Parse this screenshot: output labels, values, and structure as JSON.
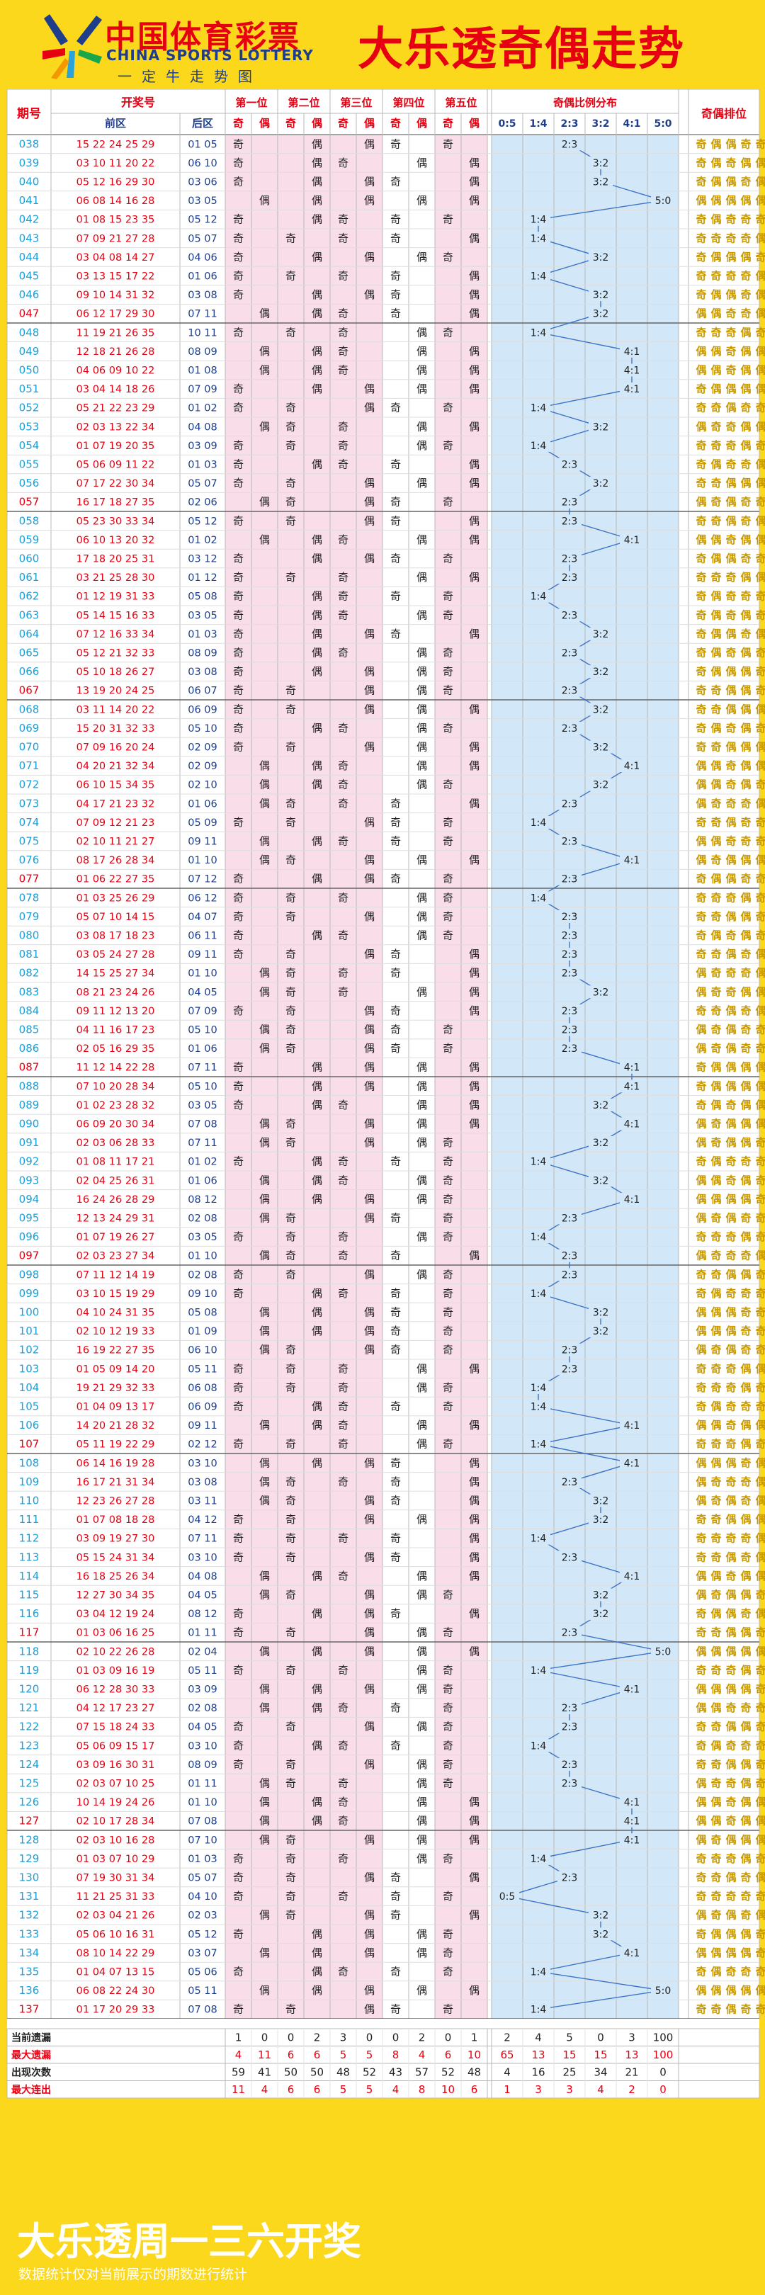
{
  "brand": {
    "cn": "中国体育彩票",
    "en": "CHINA SPORTS LOTTERY",
    "slogan": "一定牛走势图"
  },
  "title": "大乐透奇偶走势",
  "footer": {
    "title": "大乐透周一三六开奖",
    "note": "数据统计仅对当前展示的期数进行统计"
  },
  "colors": {
    "background": "#fcd81c",
    "accent_red": "#e60012",
    "brand_blue": "#1e3e8c",
    "pink_zone": "#f9dde8",
    "blue_zone": "#d2e8f8",
    "issue_text": "#1a9fd9",
    "odd_even_gold": "#c99a00"
  },
  "chart_data": {
    "type": "table",
    "headers": {
      "issue": "期号",
      "draw": "开奖号",
      "front": "前区",
      "back": "后区",
      "positions": [
        "第一位",
        "第二位",
        "第三位",
        "第四位",
        "第五位"
      ],
      "odd": "奇",
      "even": "偶",
      "ratio_group": "奇偶比例分布",
      "ratios": [
        "0:5",
        "1:4",
        "2:3",
        "3:2",
        "4:1",
        "5:0"
      ],
      "sequence": "奇偶排位"
    },
    "rows": [
      {
        "issue": "038",
        "front": "15 22 24 25 29",
        "back": "01 05"
      },
      {
        "issue": "039",
        "front": "03 10 11 20 22",
        "back": "06 10"
      },
      {
        "issue": "040",
        "front": "05 12 16 29 30",
        "back": "03 06"
      },
      {
        "issue": "041",
        "front": "06 08 14 16 28",
        "back": "03 05"
      },
      {
        "issue": "042",
        "front": "01 08 15 23 35",
        "back": "05 12"
      },
      {
        "issue": "043",
        "front": "07 09 21 27 28",
        "back": "05 07"
      },
      {
        "issue": "044",
        "front": "03 04 08 14 27",
        "back": "04 06"
      },
      {
        "issue": "045",
        "front": "03 13 15 17 22",
        "back": "01 06"
      },
      {
        "issue": "046",
        "front": "09 10 14 31 32",
        "back": "03 08"
      },
      {
        "issue": "047",
        "front": "06 12 17 29 30",
        "back": "07 11"
      },
      {
        "issue": "048",
        "front": "11 19 21 26 35",
        "back": "10 11"
      },
      {
        "issue": "049",
        "front": "12 18 21 26 28",
        "back": "08 09"
      },
      {
        "issue": "050",
        "front": "04 06 09 10 22",
        "back": "01 08"
      },
      {
        "issue": "051",
        "front": "03 04 14 18 26",
        "back": "07 09"
      },
      {
        "issue": "052",
        "front": "05 21 22 23 29",
        "back": "01 02"
      },
      {
        "issue": "053",
        "front": "02 03 13 22 34",
        "back": "04 08"
      },
      {
        "issue": "054",
        "front": "01 07 19 20 35",
        "back": "03 09"
      },
      {
        "issue": "055",
        "front": "05 06 09 11 22",
        "back": "01 03"
      },
      {
        "issue": "056",
        "front": "07 17 22 30 34",
        "back": "05 07"
      },
      {
        "issue": "057",
        "front": "16 17 18 27 35",
        "back": "02 06"
      },
      {
        "issue": "058",
        "front": "05 23 30 33 34",
        "back": "05 12"
      },
      {
        "issue": "059",
        "front": "06 10 13 20 32",
        "back": "01 02"
      },
      {
        "issue": "060",
        "front": "17 18 20 25 31",
        "back": "03 12"
      },
      {
        "issue": "061",
        "front": "03 21 25 28 30",
        "back": "01 12"
      },
      {
        "issue": "062",
        "front": "01 12 19 31 33",
        "back": "05 08"
      },
      {
        "issue": "063",
        "front": "05 14 15 16 33",
        "back": "03 05"
      },
      {
        "issue": "064",
        "front": "07 12 16 33 34",
        "back": "01 03"
      },
      {
        "issue": "065",
        "front": "05 12 21 32 33",
        "back": "08 09"
      },
      {
        "issue": "066",
        "front": "05 10 18 26 27",
        "back": "03 08"
      },
      {
        "issue": "067",
        "front": "13 19 20 24 25",
        "back": "06 07"
      },
      {
        "issue": "068",
        "front": "03 11 14 20 22",
        "back": "06 09"
      },
      {
        "issue": "069",
        "front": "15 20 31 32 33",
        "back": "05 10"
      },
      {
        "issue": "070",
        "front": "07 09 16 20 24",
        "back": "02 09"
      },
      {
        "issue": "071",
        "front": "04 20 21 32 34",
        "back": "02 09"
      },
      {
        "issue": "072",
        "front": "06 10 15 34 35",
        "back": "02 10"
      },
      {
        "issue": "073",
        "front": "04 17 21 23 32",
        "back": "01 06"
      },
      {
        "issue": "074",
        "front": "07 09 12 21 23",
        "back": "05 09"
      },
      {
        "issue": "075",
        "front": "02 10 11 21 27",
        "back": "09 11"
      },
      {
        "issue": "076",
        "front": "08 17 26 28 34",
        "back": "01 10"
      },
      {
        "issue": "077",
        "front": "01 06 22 27 35",
        "back": "07 12"
      },
      {
        "issue": "078",
        "front": "01 03 25 26 29",
        "back": "06 12"
      },
      {
        "issue": "079",
        "front": "05 07 10 14 15",
        "back": "04 07"
      },
      {
        "issue": "080",
        "front": "03 08 17 18 23",
        "back": "06 11"
      },
      {
        "issue": "081",
        "front": "03 05 24 27 28",
        "back": "09 11"
      },
      {
        "issue": "082",
        "front": "14 15 25 27 34",
        "back": "01 10"
      },
      {
        "issue": "083",
        "front": "08 21 23 24 26",
        "back": "04 05"
      },
      {
        "issue": "084",
        "front": "09 11 12 13 20",
        "back": "07 09"
      },
      {
        "issue": "085",
        "front": "04 11 16 17 23",
        "back": "05 10"
      },
      {
        "issue": "086",
        "front": "02 05 16 29 35",
        "back": "01 06"
      },
      {
        "issue": "087",
        "front": "11 12 14 22 28",
        "back": "07 11"
      },
      {
        "issue": "088",
        "front": "07 10 20 28 34",
        "back": "05 10"
      },
      {
        "issue": "089",
        "front": "01 02 23 28 32",
        "back": "03 05"
      },
      {
        "issue": "090",
        "front": "06 09 20 30 34",
        "back": "07 08"
      },
      {
        "issue": "091",
        "front": "02 03 06 28 33",
        "back": "07 11"
      },
      {
        "issue": "092",
        "front": "01 08 11 17 21",
        "back": "01 02"
      },
      {
        "issue": "093",
        "front": "02 04 25 26 31",
        "back": "01 06"
      },
      {
        "issue": "094",
        "front": "16 24 26 28 29",
        "back": "08 12"
      },
      {
        "issue": "095",
        "front": "12 13 24 29 31",
        "back": "02 08"
      },
      {
        "issue": "096",
        "front": "01 07 19 26 27",
        "back": "03 05"
      },
      {
        "issue": "097",
        "front": "02 03 23 27 34",
        "back": "01 10"
      },
      {
        "issue": "098",
        "front": "07 11 12 14 19",
        "back": "02 08"
      },
      {
        "issue": "099",
        "front": "03 10 15 19 29",
        "back": "09 10"
      },
      {
        "issue": "100",
        "front": "04 10 24 31 35",
        "back": "05 08"
      },
      {
        "issue": "101",
        "front": "02 10 12 19 33",
        "back": "01 09"
      },
      {
        "issue": "102",
        "front": "16 19 22 27 35",
        "back": "06 10"
      },
      {
        "issue": "103",
        "front": "01 05 09 14 20",
        "back": "05 11"
      },
      {
        "issue": "104",
        "front": "19 21 29 32 33",
        "back": "06 08"
      },
      {
        "issue": "105",
        "front": "01 04 09 13 17",
        "back": "06 09"
      },
      {
        "issue": "106",
        "front": "14 20 21 28 32",
        "back": "09 11"
      },
      {
        "issue": "107",
        "front": "05 11 19 22 29",
        "back": "02 12"
      },
      {
        "issue": "108",
        "front": "06 14 16 19 28",
        "back": "03 10"
      },
      {
        "issue": "109",
        "front": "16 17 21 31 34",
        "back": "03 08"
      },
      {
        "issue": "110",
        "front": "12 23 26 27 28",
        "back": "03 11"
      },
      {
        "issue": "111",
        "front": "01 07 08 18 28",
        "back": "04 12"
      },
      {
        "issue": "112",
        "front": "03 09 19 27 30",
        "back": "07 11"
      },
      {
        "issue": "113",
        "front": "05 15 24 31 34",
        "back": "03 10"
      },
      {
        "issue": "114",
        "front": "16 18 25 26 34",
        "back": "04 08"
      },
      {
        "issue": "115",
        "front": "12 27 30 34 35",
        "back": "04 05"
      },
      {
        "issue": "116",
        "front": "03 04 12 19 24",
        "back": "08 12"
      },
      {
        "issue": "117",
        "front": "01 03 06 16 25",
        "back": "01 11"
      },
      {
        "issue": "118",
        "front": "02 10 22 26 28",
        "back": "02 04"
      },
      {
        "issue": "119",
        "front": "01 03 09 16 19",
        "back": "05 11"
      },
      {
        "issue": "120",
        "front": "06 12 28 30 33",
        "back": "03 09"
      },
      {
        "issue": "121",
        "front": "04 12 17 23 27",
        "back": "02 08"
      },
      {
        "issue": "122",
        "front": "07 15 18 24 33",
        "back": "04 05"
      },
      {
        "issue": "123",
        "front": "05 06 09 15 17",
        "back": "03 10"
      },
      {
        "issue": "124",
        "front": "03 09 16 30 31",
        "back": "08 09"
      },
      {
        "issue": "125",
        "front": "02 03 07 10 25",
        "back": "01 11"
      },
      {
        "issue": "126",
        "front": "10 14 19 24 26",
        "back": "01 10"
      },
      {
        "issue": "127",
        "front": "02 10 17 28 34",
        "back": "07 08"
      },
      {
        "issue": "128",
        "front": "02 03 10 16 28",
        "back": "07 10"
      },
      {
        "issue": "129",
        "front": "01 03 07 10 29",
        "back": "01 03"
      },
      {
        "issue": "130",
        "front": "07 19 30 31 34",
        "back": "05 07"
      },
      {
        "issue": "131",
        "front": "11 21 25 31 33",
        "back": "04 10"
      },
      {
        "issue": "132",
        "front": "02 03 04 21 26",
        "back": "02 03"
      },
      {
        "issue": "133",
        "front": "05 06 10 16 31",
        "back": "05 12"
      },
      {
        "issue": "134",
        "front": "08 10 14 22 29",
        "back": "03 07"
      },
      {
        "issue": "135",
        "front": "01 04 07 13 15",
        "back": "05 06"
      },
      {
        "issue": "136",
        "front": "06 08 22 24 30",
        "back": "05 11"
      },
      {
        "issue": "137",
        "front": "01 17 20 29 33",
        "back": "07 08"
      }
    ],
    "stats": [
      {
        "label": "当前遗漏",
        "values": [
          1,
          0,
          0,
          2,
          3,
          0,
          0,
          2,
          0,
          1,
          2,
          4,
          5,
          0,
          3,
          100
        ]
      },
      {
        "label": "最大遗漏",
        "values": [
          4,
          11,
          6,
          6,
          5,
          5,
          8,
          4,
          6,
          10,
          65,
          13,
          15,
          15,
          13,
          100
        ]
      },
      {
        "label": "出现次数",
        "values": [
          59,
          41,
          50,
          50,
          48,
          52,
          43,
          57,
          52,
          48,
          4,
          16,
          25,
          34,
          21,
          0
        ]
      },
      {
        "label": "最大连出",
        "values": [
          11,
          4,
          6,
          6,
          5,
          5,
          4,
          8,
          10,
          6,
          1,
          3,
          3,
          4,
          2,
          0
        ]
      }
    ]
  }
}
